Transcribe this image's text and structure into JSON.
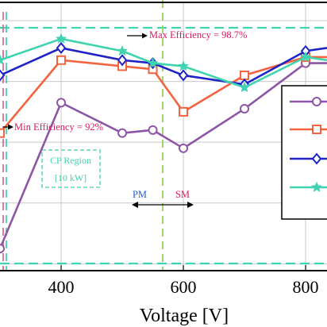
{
  "chart_data": {
    "type": "line",
    "title": "",
    "xlabel": "Voltage [V]",
    "ylabel": "",
    "xlim": [
      300,
      835
    ],
    "ylim": [
      90.8,
      99.6
    ],
    "x_ticks": [
      400,
      600,
      800
    ],
    "x_tick_labels": [
      "400",
      "600",
      "800"
    ],
    "y_gridlines": [
      91,
      93,
      95,
      97,
      99
    ],
    "grid": true,
    "series": [
      {
        "color": "#8e55a6",
        "marker": "circle",
        "x": [
          300,
          400,
          500,
          550,
          600,
          700,
          800,
          835
        ],
        "y": [
          91.5,
          96.3,
          95.3,
          95.4,
          94.8,
          96.1,
          97.6,
          97.6
        ]
      },
      {
        "color": "#f2633e",
        "marker": "square",
        "x": [
          300,
          400,
          500,
          550,
          600,
          700,
          800,
          835
        ],
        "y": [
          95.3,
          97.7,
          97.5,
          97.4,
          96.0,
          97.2,
          97.8,
          97.8
        ]
      },
      {
        "color": "#1f22c7",
        "marker": "diamond",
        "x": [
          300,
          400,
          500,
          550,
          600,
          700,
          800,
          835
        ],
        "y": [
          97.2,
          98.1,
          97.7,
          97.6,
          97.2,
          96.9,
          98.0,
          98.1
        ]
      },
      {
        "color": "#3fd3b0",
        "marker": "star",
        "x": [
          300,
          400,
          500,
          550,
          600,
          700,
          800,
          835
        ],
        "y": [
          97.7,
          98.4,
          98.0,
          97.6,
          97.5,
          96.8,
          97.8,
          97.7
        ]
      }
    ],
    "legend_position": "right"
  },
  "annotations": {
    "max_efficiency": "Max Efficiency = 98.7%",
    "min_efficiency": "Min Efficiency = 92%",
    "cp_region_line1": "CP Region",
    "cp_region_line2": "[10 kW]",
    "pm": "PM",
    "sm": "SM"
  },
  "colors": {
    "annotation_red": "#d81b60",
    "annotation_blue": "#1f5fc7",
    "cp_region_green": "#3fd3b0",
    "grid": "#c8c8c8",
    "dashed_pink": "#e0689a",
    "dashed_green": "#9bd66b"
  }
}
